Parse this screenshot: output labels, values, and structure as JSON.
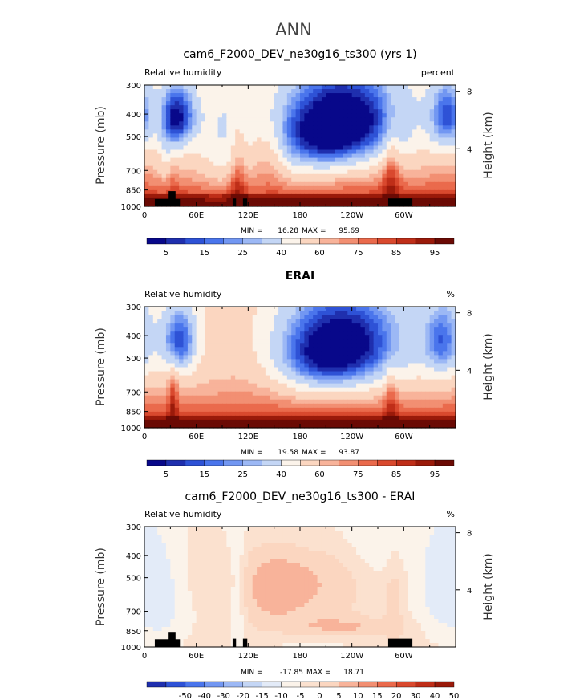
{
  "page_title": "ANN",
  "colors": {
    "rh_scale": [
      "#08088a",
      "#1f2fae",
      "#2e52d6",
      "#4a75ec",
      "#7297f2",
      "#9cb8f5",
      "#c4d6f5",
      "#fbf3ea",
      "#fbd6c0",
      "#f8b39a",
      "#f28f72",
      "#ea6a4c",
      "#d9492e",
      "#bf2e18",
      "#9a1a0a",
      "#6b0a04"
    ],
    "diff_scale": [
      "#08088a",
      "#1f2fae",
      "#2e52d6",
      "#4a75ec",
      "#7297f2",
      "#9cb8f5",
      "#c4d6f5",
      "#e3ebf8",
      "#fbf3ea",
      "#fbe1cf",
      "#fbd6c0",
      "#f8b39a",
      "#f28f72",
      "#ea6a4c",
      "#d9492e",
      "#bf2e18",
      "#9a1a0a",
      "#6b0a04"
    ],
    "land_mask": "#000000"
  },
  "chart_data": [
    {
      "id": "model",
      "type": "heatmap",
      "title": "cam6_F2000_DEV_ne30g16_ts300 (yrs 1)",
      "field_label": "Relative humidity",
      "units": "percent",
      "ylabel": "Pressure (mb)",
      "ylabel_right": "Height (km)",
      "x_ticks": [
        {
          "lon": 0,
          "label": "0"
        },
        {
          "lon": 60,
          "label": "60E"
        },
        {
          "lon": 120,
          "label": "120E"
        },
        {
          "lon": 180,
          "label": "180"
        },
        {
          "lon": 240,
          "label": "120W"
        },
        {
          "lon": 300,
          "label": "60W"
        }
      ],
      "xlim": [
        0,
        360
      ],
      "y_ticks": [
        300,
        400,
        500,
        700,
        850,
        1000
      ],
      "ylim": [
        1000,
        300
      ],
      "height_ticks": [
        4,
        8
      ],
      "min_max": {
        "min_label": "MIN =",
        "min": "16.28",
        "max_label": "MAX =",
        "max": "95.69"
      },
      "colorbar": {
        "levels": [
          0,
          5,
          10,
          15,
          20,
          25,
          30,
          40,
          50,
          60,
          65,
          70,
          75,
          80,
          85,
          90,
          95
        ],
        "labels": [
          "5",
          "15",
          "25",
          "40",
          "60",
          "75",
          "85",
          "95"
        ],
        "label_after": [
          0,
          2,
          4,
          6,
          8,
          10,
          12,
          14
        ]
      },
      "features": [
        {
          "lon": 40,
          "p": 410,
          "sx": 14,
          "sy": 90,
          "amp": -45
        },
        {
          "lon": 30,
          "p": 560,
          "sx": 8,
          "sy": 170,
          "amp": -18
        },
        {
          "lon": 232,
          "p": 420,
          "sx": 48,
          "sy": 140,
          "amp": -55
        },
        {
          "lon": 200,
          "p": 530,
          "sx": 35,
          "sy": 120,
          "amp": -20
        },
        {
          "lon": 350,
          "p": 410,
          "sx": 14,
          "sy": 100,
          "amp": -38
        },
        {
          "lon": 95,
          "p": 500,
          "sx": 22,
          "sy": 230,
          "amp": -12
        },
        {
          "lon": 158,
          "p": 640,
          "sx": 60,
          "sy": 160,
          "amp": -8
        },
        {
          "lon": 108,
          "p": 720,
          "sx": 7,
          "sy": 260,
          "amp": 18
        },
        {
          "lon": 132,
          "p": 600,
          "sx": 12,
          "sy": 130,
          "amp": 12
        },
        {
          "lon": 150,
          "p": 600,
          "sx": 10,
          "sy": 150,
          "amp": 10
        },
        {
          "lon": 285,
          "p": 720,
          "sx": 7,
          "sy": 220,
          "amp": 18
        },
        {
          "lon": 33,
          "p": 700,
          "sx": 5,
          "sy": 150,
          "amp": 14
        }
      ],
      "land_mask": [
        {
          "lon0": 12,
          "lon1": 42,
          "p": 930
        },
        {
          "lon0": 28,
          "lon1": 36,
          "p": 860
        },
        {
          "lon0": 102,
          "lon1": 106,
          "p": 925
        },
        {
          "lon0": 114,
          "lon1": 119,
          "p": 925
        },
        {
          "lon0": 282,
          "lon1": 310,
          "p": 925
        }
      ]
    },
    {
      "id": "obs",
      "type": "heatmap",
      "title": "ERAI",
      "field_label": "Relative humidity",
      "units": "%",
      "ylabel": "Pressure (mb)",
      "ylabel_right": "Height (km)",
      "x_ticks": [
        {
          "lon": 0,
          "label": "0"
        },
        {
          "lon": 60,
          "label": "60E"
        },
        {
          "lon": 120,
          "label": "120E"
        },
        {
          "lon": 180,
          "label": "180"
        },
        {
          "lon": 240,
          "label": "120W"
        },
        {
          "lon": 300,
          "label": "60W"
        }
      ],
      "xlim": [
        0,
        360
      ],
      "y_ticks": [
        300,
        400,
        500,
        700,
        850,
        1000
      ],
      "ylim": [
        1000,
        300
      ],
      "height_ticks": [
        4,
        8
      ],
      "min_max": {
        "min_label": "MIN =",
        "min": "19.58",
        "max_label": "MAX =",
        "max": "93.87"
      },
      "colorbar": {
        "levels": [
          0,
          5,
          10,
          15,
          20,
          25,
          30,
          40,
          50,
          60,
          65,
          70,
          75,
          80,
          85,
          90,
          95
        ],
        "labels": [
          "5",
          "15",
          "25",
          "40",
          "60",
          "75",
          "85",
          "95"
        ],
        "label_after": [
          0,
          2,
          4,
          6,
          8,
          10,
          12,
          14
        ]
      },
      "features": [
        {
          "lon": 40,
          "p": 420,
          "sx": 14,
          "sy": 100,
          "amp": -42
        },
        {
          "lon": 232,
          "p": 430,
          "sx": 50,
          "sy": 150,
          "amp": -52
        },
        {
          "lon": 200,
          "p": 520,
          "sx": 35,
          "sy": 120,
          "amp": -18
        },
        {
          "lon": 345,
          "p": 420,
          "sx": 16,
          "sy": 110,
          "amp": -34
        },
        {
          "lon": 120,
          "p": 500,
          "sx": 30,
          "sy": 250,
          "amp": 4
        },
        {
          "lon": 33,
          "p": 760,
          "sx": 4,
          "sy": 200,
          "amp": 16
        },
        {
          "lon": 285,
          "p": 760,
          "sx": 6,
          "sy": 180,
          "amp": 14
        }
      ],
      "land_mask": []
    },
    {
      "id": "diff",
      "type": "heatmap",
      "title": "cam6_F2000_DEV_ne30g16_ts300 - ERAI",
      "field_label": "Relative humidity",
      "units": "%",
      "ylabel": "Pressure (mb)",
      "ylabel_right": "Height (km)",
      "x_ticks": [
        {
          "lon": 0,
          "label": "0"
        },
        {
          "lon": 60,
          "label": "60E"
        },
        {
          "lon": 120,
          "label": "120E"
        },
        {
          "lon": 180,
          "label": "180"
        },
        {
          "lon": 240,
          "label": "120W"
        },
        {
          "lon": 300,
          "label": "60W"
        }
      ],
      "xlim": [
        0,
        360
      ],
      "y_ticks": [
        300,
        400,
        500,
        700,
        850,
        1000
      ],
      "ylim": [
        1000,
        300
      ],
      "height_ticks": [
        4,
        8
      ],
      "min_max": {
        "min_label": "MIN =",
        "min": "-17.85",
        "max_label": "MAX =",
        "max": "18.71"
      },
      "colorbar": {
        "levels": [
          -60,
          -50,
          -40,
          -30,
          -20,
          -15,
          -10,
          -5,
          0,
          5,
          10,
          15,
          20,
          30,
          40,
          50,
          60
        ],
        "labels": [
          "-50",
          "-40",
          "-30",
          "-20",
          "-15",
          "-10",
          "-5",
          "0",
          "5",
          "10",
          "15",
          "20",
          "30",
          "40",
          "50"
        ],
        "label_after": [
          1,
          2,
          3,
          4,
          5,
          6,
          7,
          8,
          9,
          10,
          11,
          12,
          13,
          14,
          15
        ]
      },
      "features": [
        {
          "lon": 200,
          "p": 500,
          "sx": 60,
          "sy": 220,
          "amp": 7
        },
        {
          "lon": 230,
          "p": 820,
          "sx": 45,
          "sy": 60,
          "amp": 9
        },
        {
          "lon": 140,
          "p": 560,
          "sx": 30,
          "sy": 200,
          "amp": 8
        },
        {
          "lon": 108,
          "p": 600,
          "sx": 6,
          "sy": 300,
          "amp": -7
        },
        {
          "lon": 350,
          "p": 520,
          "sx": 20,
          "sy": 250,
          "amp": -8
        },
        {
          "lon": 25,
          "p": 650,
          "sx": 18,
          "sy": 300,
          "amp": -5
        },
        {
          "lon": 290,
          "p": 600,
          "sx": 10,
          "sy": 250,
          "amp": 7
        },
        {
          "lon": 60,
          "p": 500,
          "sx": 20,
          "sy": 200,
          "amp": 4
        },
        {
          "lon": 180,
          "p": 300,
          "sx": 70,
          "sy": 80,
          "amp": -5
        },
        {
          "lon": 275,
          "p": 350,
          "sx": 25,
          "sy": 100,
          "amp": -6
        }
      ],
      "land_mask": [
        {
          "lon0": 12,
          "lon1": 42,
          "p": 925
        },
        {
          "lon0": 28,
          "lon1": 36,
          "p": 860
        },
        {
          "lon0": 102,
          "lon1": 106,
          "p": 920
        },
        {
          "lon0": 114,
          "lon1": 119,
          "p": 920
        },
        {
          "lon0": 282,
          "lon1": 310,
          "p": 920
        }
      ]
    }
  ]
}
